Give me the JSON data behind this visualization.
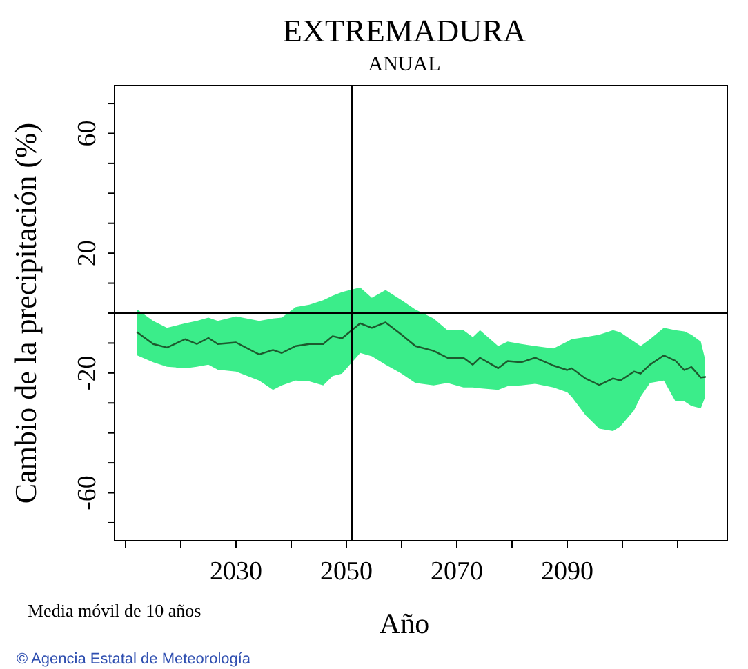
{
  "chart_data": {
    "type": "line",
    "title": "EXTREMADURA",
    "subtitle": "ANUAL",
    "xlabel": "Año",
    "ylabel": "Cambio de la precipitación (%)",
    "annotations": [
      "Media móvil de 10 años",
      "© Agencia Estatal de Meteorología"
    ],
    "xlim": [
      2008,
      2119
    ],
    "ylim": [
      -76,
      76
    ],
    "xticks": [
      {
        "value": 2010,
        "label": null
      },
      {
        "value": 2020,
        "label": null
      },
      2030,
      {
        "value": 2040,
        "label": null
      },
      2050,
      {
        "value": 2060,
        "label": null
      },
      2070,
      {
        "value": 2080,
        "label": null
      },
      2090,
      {
        "value": 2100,
        "label": null
      },
      {
        "value": 2110,
        "label": null
      }
    ],
    "yticks": [
      {
        "value": -70,
        "label": null
      },
      -60,
      {
        "value": -50,
        "label": null
      },
      {
        "value": -40,
        "label": null
      },
      {
        "value": -30,
        "label": null
      },
      -20,
      {
        "value": -10,
        "label": null
      },
      {
        "value": 0,
        "label": null
      },
      {
        "value": 10,
        "label": null
      },
      20,
      {
        "value": 30,
        "label": null
      },
      {
        "value": 40,
        "label": null
      },
      {
        "value": 50,
        "label": null
      },
      60,
      {
        "value": 70,
        "label": null
      }
    ],
    "ref_lines": [
      {
        "axis": "y",
        "value": 0,
        "color": "#000000"
      },
      {
        "axis": "x",
        "value": 2051,
        "color": "#000000"
      }
    ],
    "series": [
      {
        "color": "#1d5a2e",
        "x": [
          2012.1,
          2015,
          2017.5,
          2020.8,
          2022.9,
          2025,
          2026.7,
          2030,
          2034.2,
          2036.7,
          2038.3,
          2040.8,
          2043.3,
          2045.8,
          2047.5,
          2049.2,
          2052.5,
          2054.6,
          2057.1,
          2060,
          2062.5,
          2065.8,
          2068.3,
          2071.2,
          2072.9,
          2074.2,
          2077.5,
          2079.2,
          2081.7,
          2084.2,
          2087.5,
          2090,
          2090.8,
          2093.3,
          2095.8,
          2098.3,
          2099.6,
          2102.1,
          2103.3,
          2105,
          2107.5,
          2109.6,
          2111.2,
          2112.5,
          2114.2,
          2115
        ],
        "values": [
          -6.4,
          -10.3,
          -11.5,
          -8.7,
          -10.3,
          -8.3,
          -10.3,
          -9.8,
          -13.8,
          -12.3,
          -13.3,
          -11,
          -10.3,
          -10.3,
          -7.7,
          -8.4,
          -3.4,
          -4.9,
          -3.1,
          -7.2,
          -11,
          -12.6,
          -14.9,
          -14.9,
          -17.2,
          -14.9,
          -18.4,
          -16,
          -16.4,
          -14.9,
          -17.5,
          -19,
          -18.4,
          -21.8,
          -24,
          -21.8,
          -22.5,
          -19.5,
          -20.2,
          -17.2,
          -14.1,
          -15.9,
          -19,
          -18,
          -21.5,
          -21.3
        ],
        "upper": [
          1.2,
          -2.6,
          -4.9,
          -3.4,
          -2.6,
          -1.5,
          -2.6,
          -1.1,
          -2.6,
          -1.8,
          -1.5,
          2,
          2.8,
          4.3,
          5.8,
          7,
          8.6,
          5.1,
          7.7,
          4.3,
          1.2,
          -1.8,
          -5.7,
          -5.7,
          -8,
          -5.7,
          -11,
          -9.5,
          -10.3,
          -11,
          -11.8,
          -9.5,
          -8.7,
          -8,
          -7.2,
          -5.7,
          -6.4,
          -9.5,
          -11,
          -8.7,
          -4.9,
          -5.7,
          -6.1,
          -7.2,
          -9.5,
          -15.6
        ],
        "lower": [
          -14.1,
          -16.4,
          -17.9,
          -18.4,
          -17.9,
          -17.2,
          -18.9,
          -19.5,
          -22.5,
          -25.6,
          -24.1,
          -22.5,
          -22.8,
          -24.1,
          -21,
          -20.2,
          -13.3,
          -14.4,
          -17.2,
          -20.2,
          -23.3,
          -24.1,
          -23.3,
          -24.8,
          -24.8,
          -25.1,
          -25.6,
          -24.4,
          -24.1,
          -23.6,
          -24.8,
          -26.4,
          -27.9,
          -34,
          -38.6,
          -39.4,
          -37.9,
          -32.5,
          -27.9,
          -23.3,
          -22.5,
          -29.4,
          -29.4,
          -31,
          -31.8,
          -27.9
        ]
      }
    ]
  }
}
